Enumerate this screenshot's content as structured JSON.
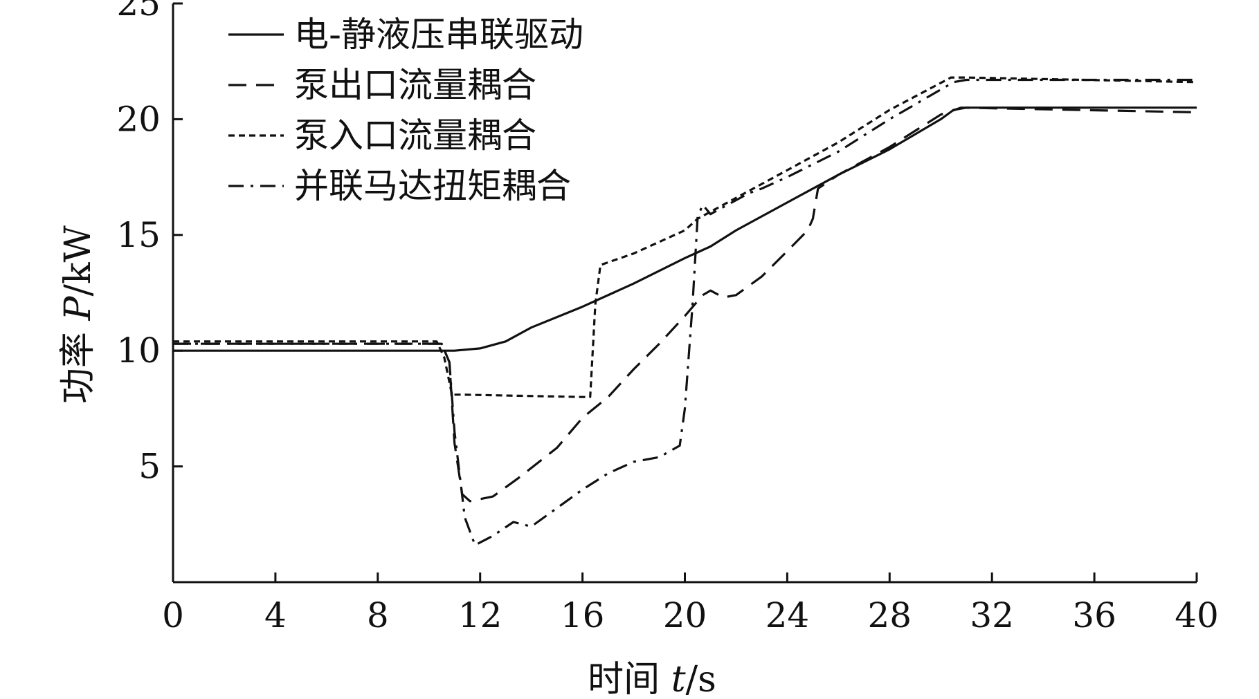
{
  "chart_data": {
    "type": "line",
    "title": "",
    "xlabel": {
      "prefix": "时间 ",
      "var": "t",
      "unit": "/s"
    },
    "ylabel": {
      "prefix": "功率 ",
      "var": "P",
      "unit": "/kW"
    },
    "xlim": [
      0,
      40
    ],
    "ylim": [
      0,
      25
    ],
    "x_ticks": [
      0,
      4,
      8,
      12,
      16,
      20,
      24,
      28,
      32,
      36,
      40
    ],
    "y_ticks": [
      5,
      10,
      15,
      20,
      25
    ],
    "grid": false,
    "legend_position": "top-left",
    "series": [
      {
        "name": "电-静液压串联驱动",
        "dash": "solid",
        "points": [
          [
            0,
            10.0
          ],
          [
            10.5,
            10.0
          ],
          [
            11,
            10.0
          ],
          [
            12,
            10.1
          ],
          [
            13,
            10.4
          ],
          [
            14,
            11.0
          ],
          [
            16,
            11.9
          ],
          [
            18,
            12.9
          ],
          [
            20,
            14.0
          ],
          [
            21,
            14.5
          ],
          [
            22,
            15.2
          ],
          [
            24,
            16.4
          ],
          [
            26,
            17.6
          ],
          [
            28,
            18.7
          ],
          [
            30,
            20.0
          ],
          [
            30.5,
            20.4
          ],
          [
            31,
            20.5
          ],
          [
            40,
            20.5
          ]
        ]
      },
      {
        "name": "泵出口流量耦合",
        "dash": "long-dash",
        "points": [
          [
            0,
            10.3
          ],
          [
            10.5,
            10.3
          ],
          [
            10.8,
            9.5
          ],
          [
            11,
            6.0
          ],
          [
            11.3,
            3.8
          ],
          [
            11.6,
            3.5
          ],
          [
            12.5,
            3.7
          ],
          [
            13.5,
            4.5
          ],
          [
            15,
            5.8
          ],
          [
            16,
            7.1
          ],
          [
            17,
            8.0
          ],
          [
            18,
            9.2
          ],
          [
            19,
            10.3
          ],
          [
            20,
            11.5
          ],
          [
            20.7,
            12.4
          ],
          [
            21,
            12.6
          ],
          [
            21.5,
            12.3
          ],
          [
            22,
            12.4
          ],
          [
            23,
            13.2
          ],
          [
            24,
            14.3
          ],
          [
            24.8,
            15.2
          ],
          [
            25,
            15.7
          ],
          [
            25.2,
            17.0
          ],
          [
            26,
            17.6
          ],
          [
            28,
            18.8
          ],
          [
            30,
            20.2
          ],
          [
            30.8,
            20.5
          ],
          [
            40,
            20.3
          ]
        ]
      },
      {
        "name": "泵入口流量耦合",
        "dash": "short-dash",
        "points": [
          [
            0,
            10.4
          ],
          [
            10.3,
            10.4
          ],
          [
            10.6,
            9.7
          ],
          [
            10.9,
            8.1
          ],
          [
            11.3,
            8.1
          ],
          [
            16,
            8.0
          ],
          [
            16.3,
            8.0
          ],
          [
            16.5,
            12.0
          ],
          [
            16.7,
            13.7
          ],
          [
            18,
            14.2
          ],
          [
            20,
            15.2
          ],
          [
            20.5,
            15.7
          ],
          [
            21,
            16.0
          ],
          [
            22,
            16.6
          ],
          [
            24,
            17.8
          ],
          [
            26,
            19.0
          ],
          [
            28,
            20.4
          ],
          [
            30.4,
            21.8
          ],
          [
            31,
            21.8
          ],
          [
            40,
            21.6
          ]
        ]
      },
      {
        "name": "并联马达扭矩耦合",
        "dash": "dash-dot",
        "points": [
          [
            0,
            10.3
          ],
          [
            10.5,
            10.3
          ],
          [
            10.8,
            9.5
          ],
          [
            11,
            6.5
          ],
          [
            11.4,
            2.8
          ],
          [
            11.8,
            1.6
          ],
          [
            12.5,
            2.0
          ],
          [
            13.3,
            2.6
          ],
          [
            14,
            2.4
          ],
          [
            15,
            3.2
          ],
          [
            16,
            4.0
          ],
          [
            17,
            4.7
          ],
          [
            18,
            5.2
          ],
          [
            19,
            5.4
          ],
          [
            19.8,
            5.9
          ],
          [
            20,
            7.5
          ],
          [
            20.3,
            12.0
          ],
          [
            20.5,
            15.8
          ],
          [
            20.7,
            16.3
          ],
          [
            21,
            15.9
          ],
          [
            21.5,
            16.2
          ],
          [
            22.5,
            16.8
          ],
          [
            23,
            17.0
          ],
          [
            24,
            17.5
          ],
          [
            26,
            18.6
          ],
          [
            28,
            20.0
          ],
          [
            30.5,
            21.6
          ],
          [
            31,
            21.7
          ],
          [
            40,
            21.7
          ]
        ]
      }
    ]
  }
}
